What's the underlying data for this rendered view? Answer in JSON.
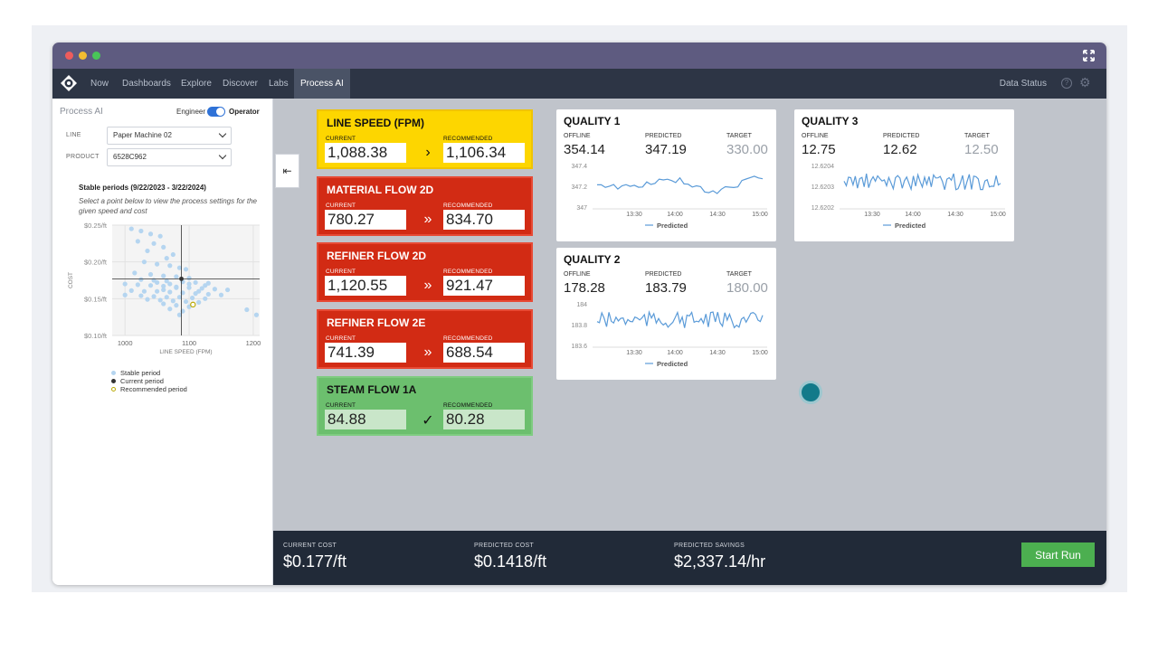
{
  "nav": {
    "items": [
      "Now",
      "Dashboards",
      "Explore",
      "Discover",
      "Labs",
      "Process AI"
    ],
    "active": "Process AI",
    "right_label": "Data Status",
    "help_glyph": "?",
    "icons": [
      "logo-icon",
      "expand-icon",
      "help-icon",
      "gear-icon"
    ]
  },
  "sidebar": {
    "title": "Process AI",
    "mode_left": "Engineer",
    "mode_right": "Operator",
    "mode_selected": "Operator",
    "line_label": "LINE",
    "line_value": "Paper Machine 02",
    "product_label": "PRODUCT",
    "product_value": "6528C962",
    "stable_title": "Stable periods (9/22/2023 - 3/22/2024)",
    "stable_subtitle": "Select a point below to view the process settings for the given speed and cost",
    "legend": {
      "stable": "Stable period",
      "current": "Current period",
      "recommended": "Recommended period"
    }
  },
  "cards": [
    {
      "title": "LINE SPEED (FPM)",
      "current_label": "CURRENT",
      "current": "1,088.38",
      "recommended_label": "RECOMMENDED",
      "recommended": "1,106.34",
      "arrow": "›",
      "status": "yellow"
    },
    {
      "title": "MATERIAL FLOW 2D",
      "current_label": "CURRENT",
      "current": "780.27",
      "recommended_label": "RECOMMENDED",
      "recommended": "834.70",
      "arrow": "»",
      "status": "red"
    },
    {
      "title": "REFINER FLOW 2D",
      "current_label": "CURRENT",
      "current": "1,120.55",
      "recommended_label": "RECOMMENDED",
      "recommended": "921.47",
      "arrow": "»",
      "status": "red"
    },
    {
      "title": "REFINER FLOW 2E",
      "current_label": "CURRENT",
      "current": "741.39",
      "recommended_label": "RECOMMENDED",
      "recommended": "688.54",
      "arrow": "»",
      "status": "red"
    },
    {
      "title": "STEAM FLOW 1A",
      "current_label": "CURRENT",
      "current": "84.88",
      "recommended_label": "RECOMMENDED",
      "recommended": "80.28",
      "arrow": "✓",
      "status": "green"
    }
  ],
  "colors": {
    "yellow": "#fdd600",
    "red": "#d22b14",
    "green": "#6cbf6e",
    "accent": "#2f72d7",
    "series": "#5b9bd8"
  },
  "quality": [
    {
      "title": "QUALITY 1",
      "offline_label": "OFFLINE",
      "offline": "354.14",
      "predicted_label": "PREDICTED",
      "predicted": "347.19",
      "target_label": "TARGET",
      "target": "330.00",
      "y_ticks": [
        "347.4",
        "347.2",
        "347"
      ],
      "x_ticks": [
        "13:30",
        "14:00",
        "14:30",
        "15:00"
      ],
      "legend": "Predicted"
    },
    {
      "title": "QUALITY 2",
      "offline_label": "OFFLINE",
      "offline": "178.28",
      "predicted_label": "PREDICTED",
      "predicted": "183.79",
      "target_label": "TARGET",
      "target": "180.00",
      "y_ticks": [
        "184",
        "183.8",
        "183.6"
      ],
      "x_ticks": [
        "13:30",
        "14:00",
        "14:30",
        "15:00"
      ],
      "legend": "Predicted"
    },
    {
      "title": "QUALITY 3",
      "offline_label": "OFFLINE",
      "offline": "12.75",
      "predicted_label": "PREDICTED",
      "predicted": "12.62",
      "target_label": "TARGET",
      "target": "12.50",
      "y_ticks": [
        "12.6204",
        "12.6203",
        "12.6202"
      ],
      "x_ticks": [
        "13:30",
        "14:00",
        "14:30",
        "15:00"
      ],
      "legend": "Predicted"
    }
  ],
  "chart_data": {
    "type": "scatter",
    "title": "Stable periods (9/22/2023 - 3/22/2024)",
    "xlabel": "LINE SPEED (FPM)",
    "ylabel": "COST",
    "xlim": [
      980,
      1210
    ],
    "ylim": [
      0.1,
      0.25
    ],
    "x_ticks": [
      "1000",
      "1100",
      "1200"
    ],
    "y_ticks": [
      "$0.25/ft",
      "$0.20/ft",
      "$0.15/ft",
      "$0.10/ft"
    ],
    "crosshair": {
      "x": 1088,
      "y": 0.177
    },
    "current": {
      "x": 1088,
      "y": 0.177
    },
    "recommended": {
      "x": 1106,
      "y": 0.142
    },
    "series": [
      {
        "name": "Stable period",
        "points": [
          [
            1010,
            0.245
          ],
          [
            1025,
            0.242
          ],
          [
            1040,
            0.238
          ],
          [
            1055,
            0.235
          ],
          [
            1020,
            0.228
          ],
          [
            1045,
            0.225
          ],
          [
            1060,
            0.22
          ],
          [
            1035,
            0.215
          ],
          [
            1075,
            0.21
          ],
          [
            1065,
            0.205
          ],
          [
            1030,
            0.2
          ],
          [
            1050,
            0.197
          ],
          [
            1070,
            0.195
          ],
          [
            1085,
            0.192
          ],
          [
            1095,
            0.19
          ],
          [
            1015,
            0.185
          ],
          [
            1040,
            0.183
          ],
          [
            1060,
            0.181
          ],
          [
            1080,
            0.18
          ],
          [
            1100,
            0.178
          ],
          [
            1025,
            0.176
          ],
          [
            1045,
            0.175
          ],
          [
            1065,
            0.174
          ],
          [
            1090,
            0.173
          ],
          [
            1110,
            0.172
          ],
          [
            1130,
            0.171
          ],
          [
            1000,
            0.17
          ],
          [
            1020,
            0.169
          ],
          [
            1040,
            0.168
          ],
          [
            1060,
            0.167
          ],
          [
            1080,
            0.166
          ],
          [
            1100,
            0.165
          ],
          [
            1120,
            0.164
          ],
          [
            1140,
            0.163
          ],
          [
            1160,
            0.162
          ],
          [
            1010,
            0.161
          ],
          [
            1030,
            0.16
          ],
          [
            1050,
            0.16
          ],
          [
            1070,
            0.159
          ],
          [
            1090,
            0.158
          ],
          [
            1110,
            0.157
          ],
          [
            1130,
            0.156
          ],
          [
            1150,
            0.155
          ],
          [
            1000,
            0.155
          ],
          [
            1025,
            0.154
          ],
          [
            1045,
            0.153
          ],
          [
            1065,
            0.152
          ],
          [
            1085,
            0.152
          ],
          [
            1105,
            0.151
          ],
          [
            1125,
            0.15
          ],
          [
            1035,
            0.149
          ],
          [
            1055,
            0.148
          ],
          [
            1075,
            0.147
          ],
          [
            1095,
            0.146
          ],
          [
            1115,
            0.145
          ],
          [
            1060,
            0.143
          ],
          [
            1080,
            0.141
          ],
          [
            1100,
            0.139
          ],
          [
            1070,
            0.136
          ],
          [
            1090,
            0.133
          ],
          [
            1085,
            0.128
          ],
          [
            1190,
            0.135
          ],
          [
            1205,
            0.128
          ],
          [
            1080,
            0.165
          ],
          [
            1070,
            0.17
          ],
          [
            1060,
            0.162
          ],
          [
            1050,
            0.172
          ],
          [
            1115,
            0.16
          ],
          [
            1125,
            0.168
          ],
          [
            1100,
            0.17
          ]
        ]
      }
    ]
  },
  "bottom": {
    "current_cost_label": "CURRENT COST",
    "current_cost": "$0.177/ft",
    "predicted_cost_label": "PREDICTED COST",
    "predicted_cost": "$0.1418/ft",
    "savings_label": "PREDICTED SAVINGS",
    "savings": "$2,337.14/hr",
    "start_button": "Start Run"
  },
  "collapse_glyph": "⇤"
}
